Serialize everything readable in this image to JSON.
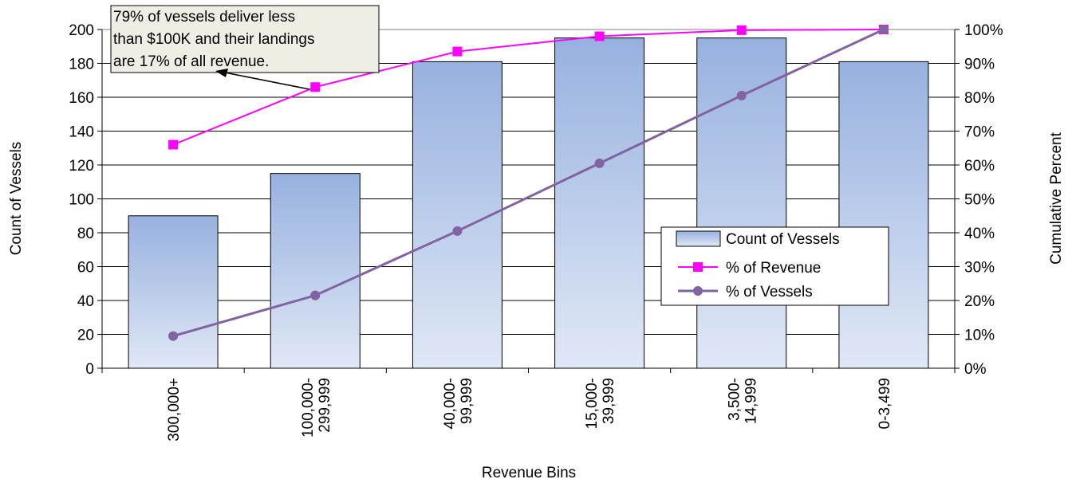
{
  "chart_data": {
    "type": "bar",
    "categories": [
      "300,000+",
      "100,000-\n299,999",
      "40,000-\n99,999",
      "15,000-\n39,999",
      "3,500-\n14,999",
      "0-3,499"
    ],
    "xlabel": "Revenue  Bins",
    "ylabel": "Count  of Vessels",
    "y2label": "Cumulative  Percent",
    "ylim": [
      0,
      200
    ],
    "y2lim": [
      0,
      100
    ],
    "yticks": [
      "0",
      "20",
      "40",
      "60",
      "80",
      "100",
      "120",
      "140",
      "160",
      "180",
      "200"
    ],
    "y2ticks": [
      "0%",
      "10%",
      "20%",
      "30%",
      "40%",
      "50%",
      "60%",
      "70%",
      "80%",
      "90%",
      "100%"
    ],
    "grid": true,
    "legend_placement": "right-center",
    "series": [
      {
        "name": "Count of Vessels",
        "type": "bar",
        "axis": "left",
        "values": [
          90,
          115,
          181,
          195,
          195,
          181
        ],
        "color": "#9bb3e0"
      },
      {
        "name": "% of Revenue",
        "type": "line",
        "axis": "right",
        "marker": "square",
        "values": [
          66,
          83,
          93.5,
          98,
          99.8,
          100
        ],
        "color": "#ff00ff"
      },
      {
        "name": "% of Vessels",
        "type": "line",
        "axis": "right",
        "marker": "circle",
        "values": [
          9.5,
          21.5,
          40.5,
          60.5,
          80.5,
          100
        ],
        "color": "#8064a2"
      }
    ],
    "annotation": {
      "lines": [
        "79% of vessels deliver less",
        "than $100K and their landings",
        "are 17% of all revenue."
      ]
    }
  }
}
